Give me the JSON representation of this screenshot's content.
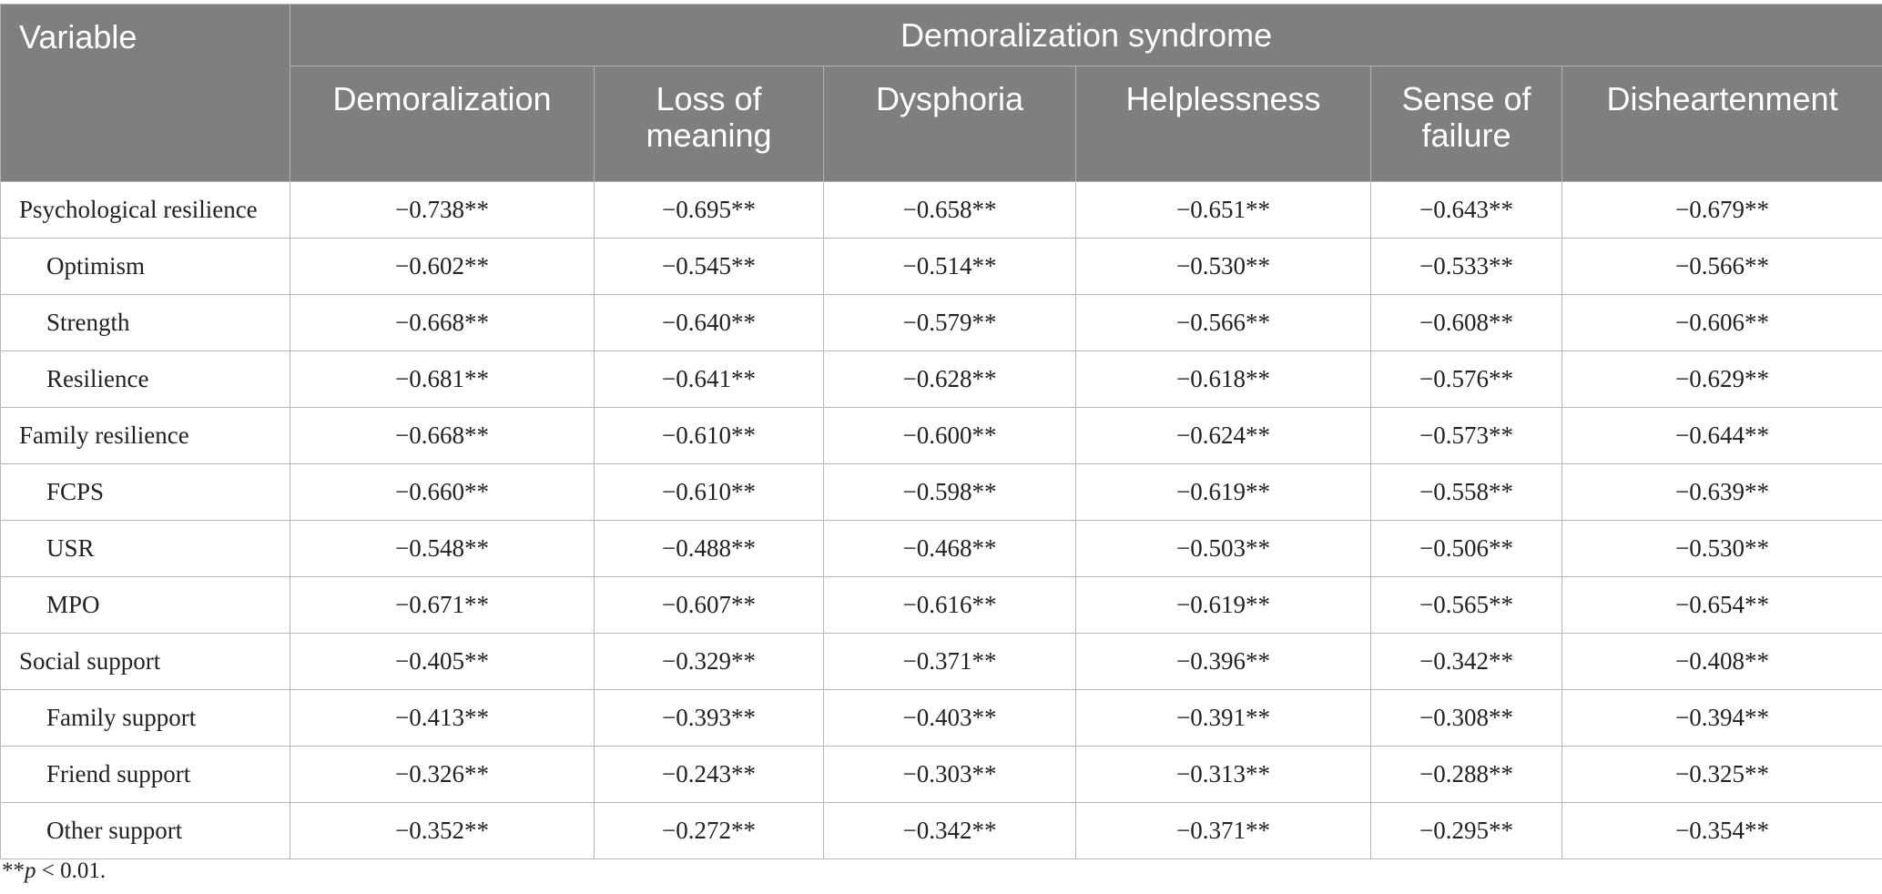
{
  "table": {
    "header": {
      "variable": "Variable",
      "group": "Demoralization syndrome",
      "columns": [
        "Demoralization",
        "Loss of meaning",
        "Dysphoria",
        "Helplessness",
        "Sense of failure",
        "Disheartenment"
      ]
    },
    "rows": [
      {
        "label": "Psychological resilience",
        "indent": false,
        "values": [
          "−0.738**",
          "−0.695**",
          "−0.658**",
          "−0.651**",
          "−0.643**",
          "−0.679**"
        ]
      },
      {
        "label": "Optimism",
        "indent": true,
        "values": [
          "−0.602**",
          "−0.545**",
          "−0.514**",
          "−0.530**",
          "−0.533**",
          "−0.566**"
        ]
      },
      {
        "label": "Strength",
        "indent": true,
        "values": [
          "−0.668**",
          "−0.640**",
          "−0.579**",
          "−0.566**",
          "−0.608**",
          "−0.606**"
        ]
      },
      {
        "label": "Resilience",
        "indent": true,
        "values": [
          "−0.681**",
          "−0.641**",
          "−0.628**",
          "−0.618**",
          "−0.576**",
          "−0.629**"
        ]
      },
      {
        "label": "Family resilience",
        "indent": false,
        "values": [
          "−0.668**",
          "−0.610**",
          "−0.600**",
          "−0.624**",
          "−0.573**",
          "−0.644**"
        ]
      },
      {
        "label": "FCPS",
        "indent": true,
        "values": [
          "−0.660**",
          "−0.610**",
          "−0.598**",
          "−0.619**",
          "−0.558**",
          "−0.639**"
        ]
      },
      {
        "label": "USR",
        "indent": true,
        "values": [
          "−0.548**",
          "−0.488**",
          "−0.468**",
          "−0.503**",
          "−0.506**",
          "−0.530**"
        ]
      },
      {
        "label": "MPO",
        "indent": true,
        "values": [
          "−0.671**",
          "−0.607**",
          "−0.616**",
          "−0.619**",
          "−0.565**",
          "−0.654**"
        ]
      },
      {
        "label": "Social support",
        "indent": false,
        "values": [
          "−0.405**",
          "−0.329**",
          "−0.371**",
          "−0.396**",
          "−0.342**",
          "−0.408**"
        ]
      },
      {
        "label": "Family support",
        "indent": true,
        "values": [
          "−0.413**",
          "−0.393**",
          "−0.403**",
          "−0.391**",
          "−0.308**",
          "−0.394**"
        ]
      },
      {
        "label": "Friend support",
        "indent": true,
        "values": [
          "−0.326**",
          "−0.243**",
          "−0.303**",
          "−0.313**",
          "−0.288**",
          "−0.325**"
        ]
      },
      {
        "label": "Other support",
        "indent": true,
        "values": [
          "−0.352**",
          "−0.272**",
          "−0.342**",
          "−0.371**",
          "−0.295**",
          "−0.354**"
        ]
      }
    ]
  },
  "footnote": {
    "stars": "**",
    "p": "p",
    "rest": " < 0.01."
  }
}
